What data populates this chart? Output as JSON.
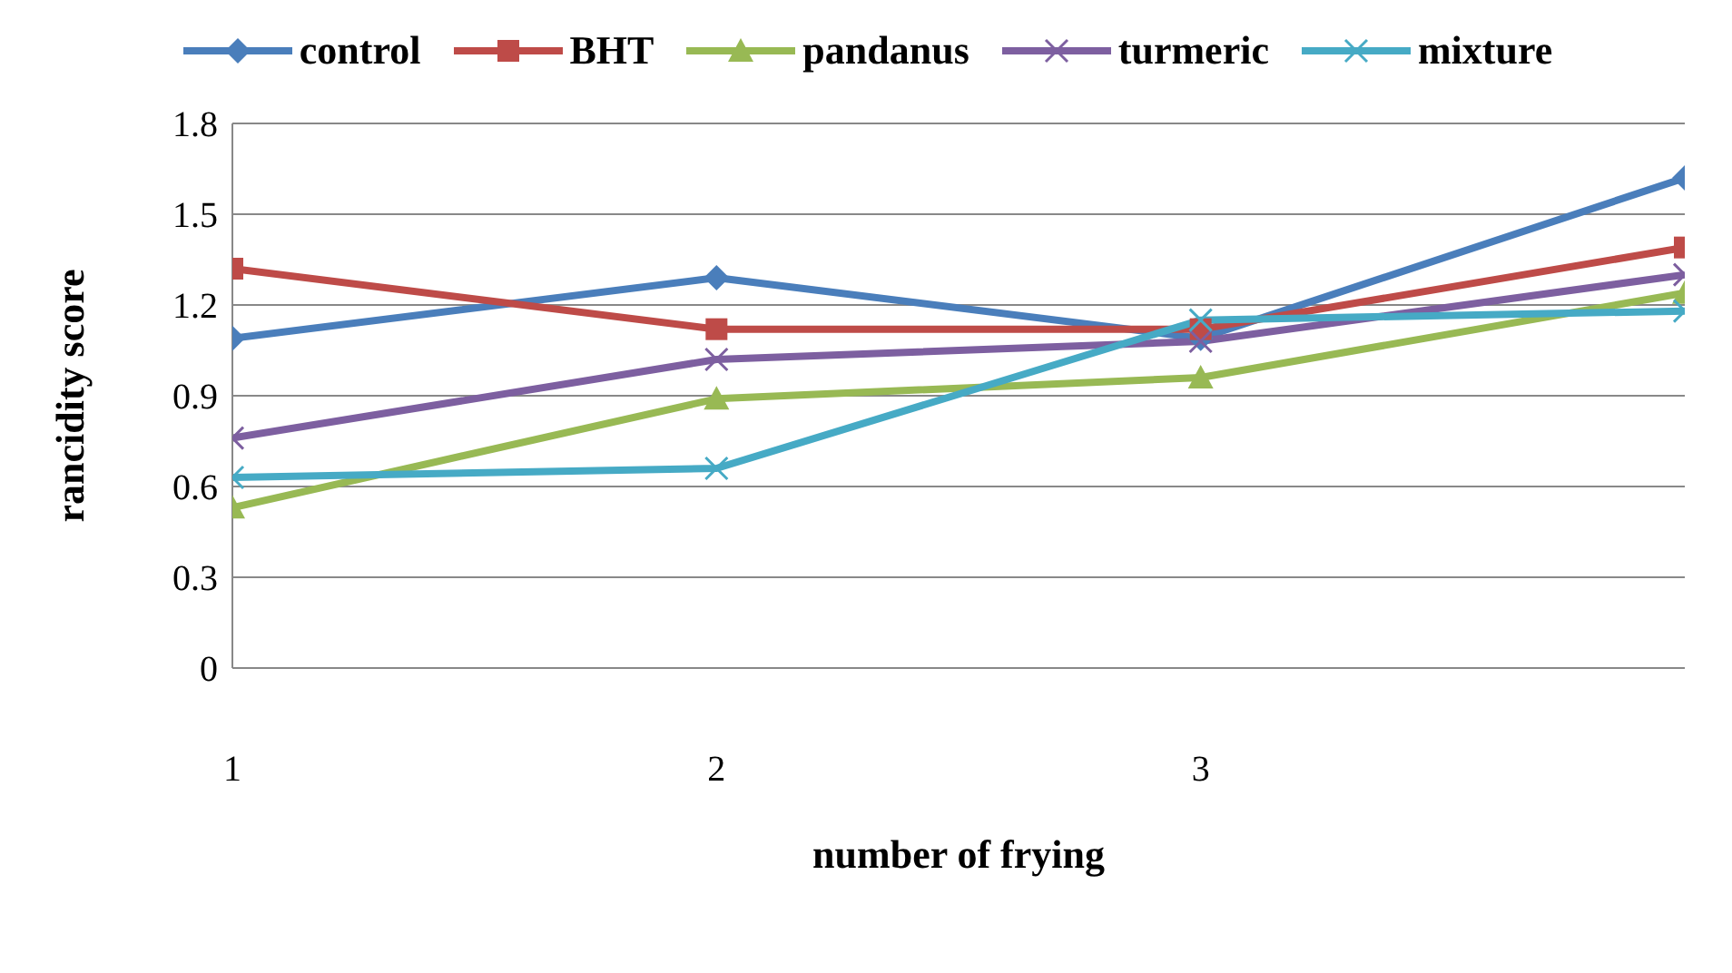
{
  "chart_data": {
    "type": "line",
    "xlabel": "number of frying",
    "ylabel": "rancidity score",
    "x": [
      1,
      2,
      3,
      4
    ],
    "xlim": [
      1,
      4
    ],
    "xticks": [
      1,
      2,
      3
    ],
    "ylim": [
      0,
      1.8
    ],
    "yticks": [
      0,
      0.3,
      0.6,
      0.9,
      1.2,
      1.5,
      1.8
    ],
    "grid": "y",
    "legend": "top",
    "series": [
      {
        "name": "control",
        "color": "#4a7ebb",
        "marker": "diamond",
        "values": [
          1.09,
          1.29,
          1.09,
          1.62
        ]
      },
      {
        "name": "BHT",
        "color": "#be4b48",
        "marker": "square",
        "values": [
          1.32,
          1.12,
          1.12,
          1.39
        ]
      },
      {
        "name": "pandanus",
        "color": "#98b954",
        "marker": "triangle",
        "values": [
          0.53,
          0.89,
          0.96,
          1.24
        ]
      },
      {
        "name": "turmeric",
        "color": "#7d5fa0",
        "marker": "cross",
        "values": [
          0.76,
          1.02,
          1.08,
          1.3
        ]
      },
      {
        "name": "mixture",
        "color": "#46aac5",
        "marker": "cross",
        "values": [
          0.63,
          0.66,
          1.15,
          1.18
        ]
      }
    ]
  }
}
